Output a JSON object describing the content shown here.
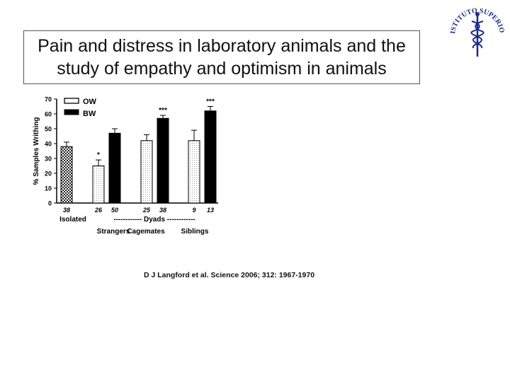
{
  "slide_title": "Pain and distress in laboratory animals and the study of empathy and optimism in animals",
  "citation": "D J Langford et al. Science 2006; 312: 1967-1970",
  "logo": {
    "text": "ISTITUTO SUPERIORE DI SANITÀ",
    "color": "#1a2a8a"
  },
  "chart_data": {
    "type": "bar",
    "title": "",
    "ylabel": "% Samples Writhing",
    "ylim": [
      0,
      70
    ],
    "yticks": [
      0,
      10,
      20,
      30,
      40,
      50,
      60,
      70
    ],
    "legend": {
      "placement": "top-left",
      "entries": [
        "OW",
        "BW"
      ]
    },
    "bars": [
      {
        "group": "Isolated",
        "style": "checker",
        "value": 38,
        "error": 3,
        "n": "38",
        "sig": ""
      },
      {
        "group": "Strangers",
        "series": "OW",
        "style": "white-dotted",
        "value": 25,
        "error": 4,
        "n": "26",
        "sig": "*"
      },
      {
        "group": "Strangers",
        "series": "BW",
        "style": "black",
        "value": 47,
        "error": 3,
        "n": "50",
        "sig": ""
      },
      {
        "group": "Cagemates",
        "series": "OW",
        "style": "white-dotted",
        "value": 42,
        "error": 4,
        "n": "25",
        "sig": ""
      },
      {
        "group": "Cagemates",
        "series": "BW",
        "style": "black",
        "value": 57,
        "error": 2,
        "n": "38",
        "sig": "***"
      },
      {
        "group": "Siblings",
        "series": "OW",
        "style": "white-dotted",
        "value": 42,
        "error": 7,
        "n": "9",
        "sig": ""
      },
      {
        "group": "Siblings",
        "series": "BW",
        "style": "black",
        "value": 62,
        "error": 3,
        "n": "13",
        "sig": "***"
      }
    ],
    "category_labels": {
      "isolated": "Isolated",
      "dyads_line": "------------   Dyads   ------------",
      "groups": [
        "Strangers",
        "Cagemates",
        "Siblings"
      ]
    }
  }
}
